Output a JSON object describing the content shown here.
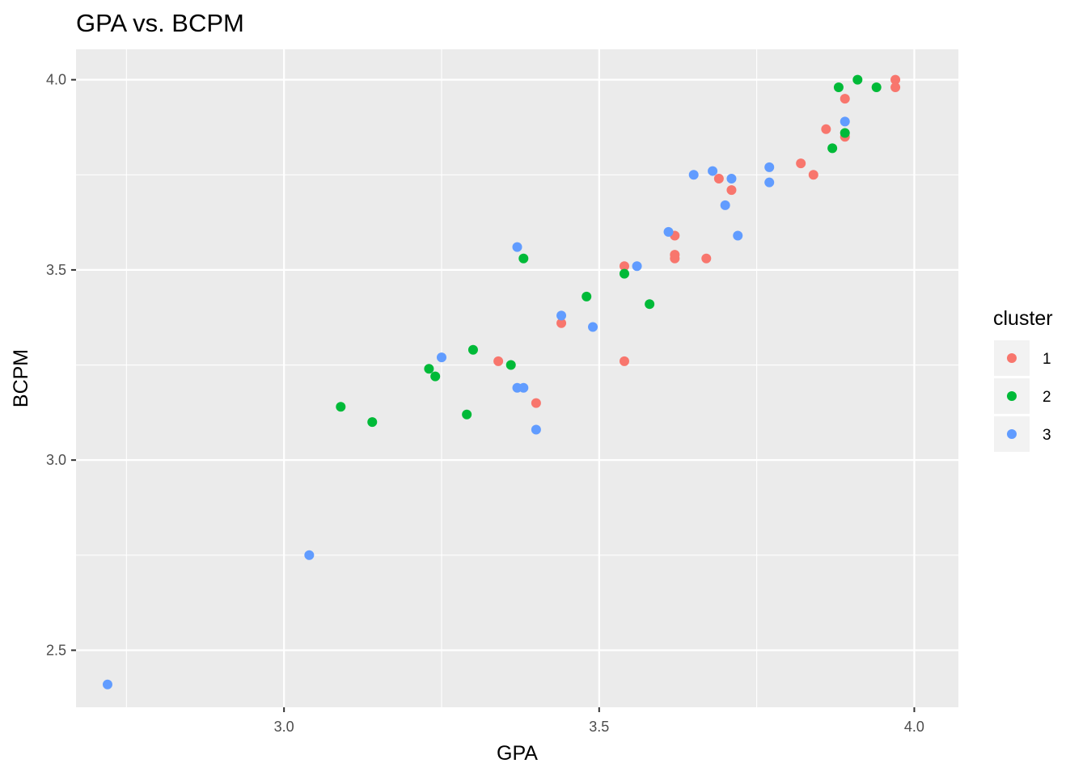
{
  "chart_data": {
    "type": "scatter",
    "title": "GPA vs. BCPM",
    "xlabel": "GPA",
    "ylabel": "BCPM",
    "xlim": [
      2.67,
      4.07
    ],
    "ylim": [
      2.35,
      4.08
    ],
    "x_ticks": [
      3.0,
      3.5,
      4.0
    ],
    "x_tick_labels": [
      "3.0",
      "3.5",
      "4.0"
    ],
    "y_ticks": [
      2.5,
      3.0,
      3.5,
      4.0
    ],
    "y_tick_labels": [
      "2.5",
      "3.0",
      "3.5",
      "4.0"
    ],
    "grid": true,
    "legend": {
      "title": "cluster",
      "placement": "right"
    },
    "series": [
      {
        "name": "1",
        "color": "#F8766D",
        "points": [
          [
            3.97,
            4.0
          ],
          [
            3.97,
            3.98
          ],
          [
            3.89,
            3.95
          ],
          [
            3.86,
            3.87
          ],
          [
            3.89,
            3.85
          ],
          [
            3.82,
            3.78
          ],
          [
            3.84,
            3.75
          ],
          [
            3.69,
            3.74
          ],
          [
            3.71,
            3.71
          ],
          [
            3.62,
            3.59
          ],
          [
            3.62,
            3.54
          ],
          [
            3.62,
            3.53
          ],
          [
            3.67,
            3.53
          ],
          [
            3.54,
            3.51
          ],
          [
            3.44,
            3.36
          ],
          [
            3.34,
            3.26
          ],
          [
            3.54,
            3.26
          ],
          [
            3.4,
            3.15
          ]
        ]
      },
      {
        "name": "2",
        "color": "#00BA38",
        "points": [
          [
            3.91,
            4.0
          ],
          [
            3.88,
            3.98
          ],
          [
            3.94,
            3.98
          ],
          [
            3.89,
            3.86
          ],
          [
            3.87,
            3.82
          ],
          [
            3.38,
            3.53
          ],
          [
            3.54,
            3.49
          ],
          [
            3.48,
            3.43
          ],
          [
            3.58,
            3.41
          ],
          [
            3.3,
            3.29
          ],
          [
            3.36,
            3.25
          ],
          [
            3.23,
            3.24
          ],
          [
            3.24,
            3.22
          ],
          [
            3.09,
            3.14
          ],
          [
            3.14,
            3.1
          ],
          [
            3.29,
            3.12
          ]
        ]
      },
      {
        "name": "3",
        "color": "#619CFF",
        "points": [
          [
            3.89,
            3.89
          ],
          [
            3.77,
            3.77
          ],
          [
            3.68,
            3.76
          ],
          [
            3.65,
            3.75
          ],
          [
            3.71,
            3.74
          ],
          [
            3.77,
            3.73
          ],
          [
            3.7,
            3.67
          ],
          [
            3.61,
            3.6
          ],
          [
            3.72,
            3.59
          ],
          [
            3.37,
            3.56
          ],
          [
            3.56,
            3.51
          ],
          [
            3.44,
            3.38
          ],
          [
            3.49,
            3.35
          ],
          [
            3.25,
            3.27
          ],
          [
            3.37,
            3.19
          ],
          [
            3.38,
            3.19
          ],
          [
            3.4,
            3.08
          ],
          [
            3.04,
            2.75
          ],
          [
            2.72,
            2.41
          ]
        ]
      }
    ]
  }
}
